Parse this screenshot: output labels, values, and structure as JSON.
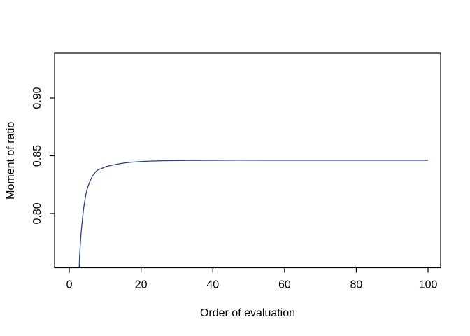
{
  "figure": {
    "background": "#ffffff"
  },
  "chart_data": {
    "type": "line",
    "title": "",
    "xlabel": "Order of evaluation",
    "ylabel": "Moment of ratio",
    "x_tick_values": [
      0,
      20,
      40,
      60,
      80,
      100
    ],
    "x_tick_labels": [
      "0",
      "20",
      "40",
      "60",
      "80",
      "100"
    ],
    "y_tick_values": [
      0.8,
      0.85,
      0.9
    ],
    "y_tick_labels": [
      "0.80",
      "0.85",
      "0.90"
    ],
    "xlim": [
      -4.1,
      103.5
    ],
    "ylim": [
      0.753,
      0.9388
    ],
    "grid": false,
    "legend": "none",
    "style": {
      "line_color": "#27408B",
      "axis_color": "#000000",
      "text_color": "#000000"
    },
    "series": [
      {
        "name": "moment_of_ratio",
        "x": [
          2.77,
          2.9,
          3.1,
          3.3,
          3.6,
          3.9,
          4.3,
          4.8,
          5.5,
          6.4,
          7.7,
          9.0,
          10.5,
          13,
          16,
          20,
          25,
          32,
          45,
          60,
          80,
          100
        ],
        "y": [
          0.753,
          0.764,
          0.7745,
          0.7836,
          0.7927,
          0.8018,
          0.8105,
          0.819,
          0.8258,
          0.832,
          0.8372,
          0.839,
          0.8408,
          0.8425,
          0.844,
          0.845,
          0.8456,
          0.8459,
          0.8461,
          0.8461,
          0.8461,
          0.8461
        ]
      }
    ]
  }
}
